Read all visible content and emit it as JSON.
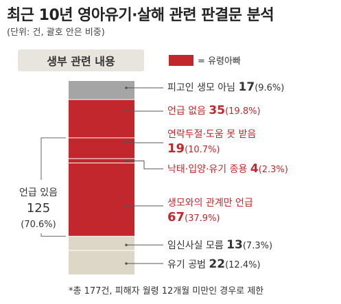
{
  "title": "최근 10년 영아유기·살해 관련 판결문 분석",
  "subtitle": "(단위: 건, 괄호 안은 비중)",
  "section_label": "생부 관련 내용",
  "legend": {
    "label": "= 유령아빠",
    "color": "#c1272d"
  },
  "footnote": "*총 177건, 피해자 월령 12개월 미만인 경우로 제한",
  "bracket": {
    "label": "언급 있음",
    "value": "125",
    "pct": "(70.6%)"
  },
  "colors": {
    "gray": "#a5a5a5",
    "red": "#c1272d",
    "beige": "#dcd7c6",
    "text_red": "#c1272d",
    "text_dark": "#333333"
  },
  "chart_data": {
    "type": "bar",
    "stacked": true,
    "total": 177,
    "segments": [
      {
        "name": "피고인 생모 아님",
        "value": 17,
        "pct": "(9.6%)",
        "color_key": "gray",
        "label_color": "text_dark",
        "two_line": false
      },
      {
        "name": "언급 없음",
        "value": 35,
        "pct": "(19.8%)",
        "color_key": "red",
        "label_color": "text_red",
        "two_line": false
      },
      {
        "name": "연락두절·도움 못 받음",
        "value": 19,
        "pct": "(10.7%)",
        "color_key": "red",
        "label_color": "text_red",
        "two_line": true
      },
      {
        "name": "낙태·입양·유기 종용",
        "value": 4,
        "pct": "(2.3%)",
        "color_key": "red",
        "label_color": "text_red",
        "two_line": false
      },
      {
        "name": "생모와의 관계만 언급",
        "value": 67,
        "pct": "(37.9%)",
        "color_key": "red",
        "label_color": "text_red",
        "two_line": true
      },
      {
        "name": "임신사실 모름",
        "value": 13,
        "pct": "(7.3%)",
        "color_key": "beige",
        "label_color": "text_dark",
        "two_line": false
      },
      {
        "name": "유기 공범",
        "value": 22,
        "pct": "(12.4%)",
        "color_key": "beige",
        "label_color": "text_dark",
        "two_line": false
      }
    ]
  }
}
